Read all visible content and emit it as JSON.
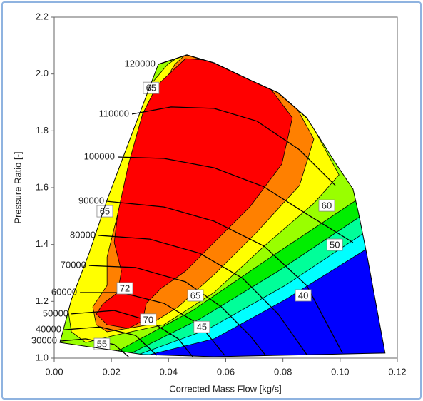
{
  "chart_data": {
    "type": "compressor-map",
    "x_label": "Corrected Mass Flow [kg/s]",
    "y_label": "Pressure Ratio [-]",
    "xlim": [
      0,
      0.12
    ],
    "ylim": [
      1.0,
      2.2
    ],
    "xticks": [
      {
        "value": 0,
        "label": "0.00"
      },
      {
        "value": 0.02,
        "label": "0.02"
      },
      {
        "value": 0.04,
        "label": "0.04"
      },
      {
        "value": 0.06,
        "label": "0.06"
      },
      {
        "value": 0.08,
        "label": "0.08"
      },
      {
        "value": 0.1,
        "label": "0.10"
      },
      {
        "value": 0.12,
        "label": "0.12"
      }
    ],
    "yticks": [
      {
        "value": 1,
        "label": "1.0"
      },
      {
        "value": 1.2,
        "label": "1.2"
      },
      {
        "value": 1.4,
        "label": "1.4"
      },
      {
        "value": 1.6,
        "label": "1.6"
      },
      {
        "value": 1.8,
        "label": "1.8"
      },
      {
        "value": 2,
        "label": "2.0"
      },
      {
        "value": 2.2,
        "label": "2.2"
      }
    ],
    "boundary": {
      "color": "#0000ff",
      "x": [
        0.002,
        0.006,
        0.0122,
        0.0185,
        0.026,
        0.0364,
        0.0464,
        0.0559,
        0.0684,
        0.0783,
        0.0883,
        0.0983,
        0.1045,
        0.1065,
        0.1095,
        0.1157,
        0.0933,
        0.0559,
        0.0309
      ],
      "y": [
        1.055,
        1.206,
        1.369,
        1.557,
        1.758,
        2.034,
        2.067,
        2.039,
        1.979,
        1.934,
        1.846,
        1.688,
        1.595,
        1.507,
        1.356,
        1.018,
        1.013,
        1.005,
        1.013
      ]
    },
    "zones": [
      {
        "color": "#00ffff",
        "x": [
          0.0284,
          0.0559,
          0.0808,
          0.1108,
          0.12,
          0.12,
          0,
          0
        ],
        "y": [
          1.0,
          1.068,
          1.206,
          1.394,
          1.43,
          2.2,
          2.2,
          1.0
        ]
      },
      {
        "color": "#00ff99",
        "x": [
          0.026,
          0.0534,
          0.0808,
          0.1108,
          0.12,
          0.12,
          0,
          0
        ],
        "y": [
          1.0,
          1.1,
          1.256,
          1.457,
          1.48,
          2.2,
          2.2,
          1.0
        ]
      },
      {
        "color": "#00ee00",
        "x": [
          0.0235,
          0.0509,
          0.0783,
          0.1083,
          0.12,
          0.12,
          0,
          0
        ],
        "y": [
          1.0,
          1.138,
          1.306,
          1.507,
          1.53,
          2.2,
          2.2,
          1.0
        ]
      },
      {
        "color": "#99ff00",
        "x": [
          0.021,
          0.0484,
          0.0758,
          0.1058,
          0.12,
          0.12,
          0,
          0
        ],
        "y": [
          1.018,
          1.168,
          1.356,
          1.557,
          1.58,
          2.2,
          2.2,
          1.018
        ]
      },
      {
        "color": "#ffff00",
        "x": [
          0.011,
          0.021,
          0.0384,
          0.0559,
          0.0734,
          0.0908,
          0.0996,
          0.0908,
          0.0833,
          0.0634,
          0.0472,
          0.0397,
          0.0334,
          0.0272,
          0.0185,
          0.0122,
          0.0072,
          0.0047,
          0.006
        ],
        "y": [
          1.055,
          1.08,
          1.118,
          1.231,
          1.394,
          1.545,
          1.645,
          1.808,
          1.921,
          2.034,
          2.085,
          2.034,
          1.959,
          1.859,
          1.658,
          1.457,
          1.306,
          1.181,
          1.093
        ]
      },
      {
        "color": "#ff8000",
        "x": [
          0.0185,
          0.0334,
          0.0434,
          0.0559,
          0.0709,
          0.0858,
          0.0908,
          0.0846,
          0.0684,
          0.0472,
          0.0422,
          0.0347,
          0.0272,
          0.0222,
          0.0185,
          0.0185,
          0.0135,
          0.0147
        ],
        "y": [
          1.093,
          1.118,
          1.181,
          1.294,
          1.444,
          1.608,
          1.771,
          1.884,
          2.009,
          2.08,
          2.034,
          1.909,
          1.683,
          1.507,
          1.356,
          1.256,
          1.181,
          1.118
        ]
      },
      {
        "color": "#ff0000",
        "x": [
          0.0359,
          0.0459,
          0.0559,
          0.0758,
          0.0833,
          0.0796,
          0.0684,
          0.0559,
          0.0459,
          0.0372,
          0.0322,
          0.0309,
          0.026,
          0.0185,
          0.0147,
          0.0172,
          0.0222,
          0.0235,
          0.021,
          0.0222,
          0.026,
          0.0309
        ],
        "y": [
          1.959,
          2.054,
          2.047,
          1.946,
          1.846,
          1.683,
          1.532,
          1.407,
          1.306,
          1.244,
          1.193,
          1.131,
          1.105,
          1.118,
          1.156,
          1.193,
          1.231,
          1.306,
          1.407,
          1.507,
          1.683,
          1.859
        ]
      }
    ],
    "speed_lines": [
      {
        "speed": 120000,
        "x": [
          0.0364,
          0.0464,
          0.0559,
          0.0684,
          0.0783,
          0.0883
        ],
        "y": [
          2.034,
          2.067,
          2.039,
          1.979,
          1.934,
          1.846
        ]
      },
      {
        "speed": 110000,
        "x": [
          0.0272,
          0.0409,
          0.0559,
          0.0709,
          0.0858,
          0.0983
        ],
        "y": [
          1.859,
          1.884,
          1.879,
          1.834,
          1.733,
          1.608
        ]
      },
      {
        "speed": 100000,
        "x": [
          0.0222,
          0.0384,
          0.0559,
          0.0734,
          0.0883,
          0.1045
        ],
        "y": [
          1.708,
          1.703,
          1.67,
          1.603,
          1.507,
          1.407
        ]
      },
      {
        "speed": 90000,
        "x": [
          0.0185,
          0.0384,
          0.0559,
          0.0734,
          0.0883,
          0.1008
        ],
        "y": [
          1.552,
          1.532,
          1.482,
          1.394,
          1.256,
          1.018
        ]
      },
      {
        "speed": 80000,
        "x": [
          0.0155,
          0.0334,
          0.0509,
          0.0659,
          0.0783,
          0.0883
        ],
        "y": [
          1.432,
          1.419,
          1.369,
          1.281,
          1.156,
          1.013
        ]
      },
      {
        "speed": 70000,
        "x": [
          0.0122,
          0.0284,
          0.0459,
          0.0584,
          0.0684,
          0.0739
        ],
        "y": [
          1.326,
          1.319,
          1.269,
          1.181,
          1.08,
          1.01
        ]
      },
      {
        "speed": 60000,
        "x": [
          0.009,
          0.0235,
          0.0384,
          0.0509,
          0.0596
        ],
        "y": [
          1.231,
          1.231,
          1.193,
          1.118,
          1.01
        ]
      },
      {
        "speed": 50000,
        "x": [
          0.006,
          0.021,
          0.0334,
          0.0434,
          0.0484
        ],
        "y": [
          1.156,
          1.168,
          1.131,
          1.068,
          1.005
        ]
      },
      {
        "speed": 40000,
        "x": [
          0.0035,
          0.016,
          0.0284,
          0.0359
        ],
        "y": [
          1.1,
          1.11,
          1.08,
          1.01
        ]
      },
      {
        "speed": 30000,
        "x": [
          0.002,
          0.011,
          0.021,
          0.026
        ],
        "y": [
          1.06,
          1.068,
          1.048,
          1.005
        ]
      }
    ],
    "contour_labels": [
      {
        "value": 65,
        "x": 0.0339,
        "y": 1.951
      },
      {
        "value": 65,
        "x": 0.0177,
        "y": 1.517
      },
      {
        "value": 72,
        "x": 0.0247,
        "y": 1.246
      },
      {
        "value": 70,
        "x": 0.0329,
        "y": 1.136
      },
      {
        "value": 55,
        "x": 0.0167,
        "y": 1.05
      },
      {
        "value": 45,
        "x": 0.0516,
        "y": 1.11
      },
      {
        "value": 65,
        "x": 0.0494,
        "y": 1.221
      },
      {
        "value": 40,
        "x": 0.0871,
        "y": 1.221
      },
      {
        "value": 50,
        "x": 0.0981,
        "y": 1.399
      },
      {
        "value": 60,
        "x": 0.0953,
        "y": 1.537
      }
    ]
  }
}
